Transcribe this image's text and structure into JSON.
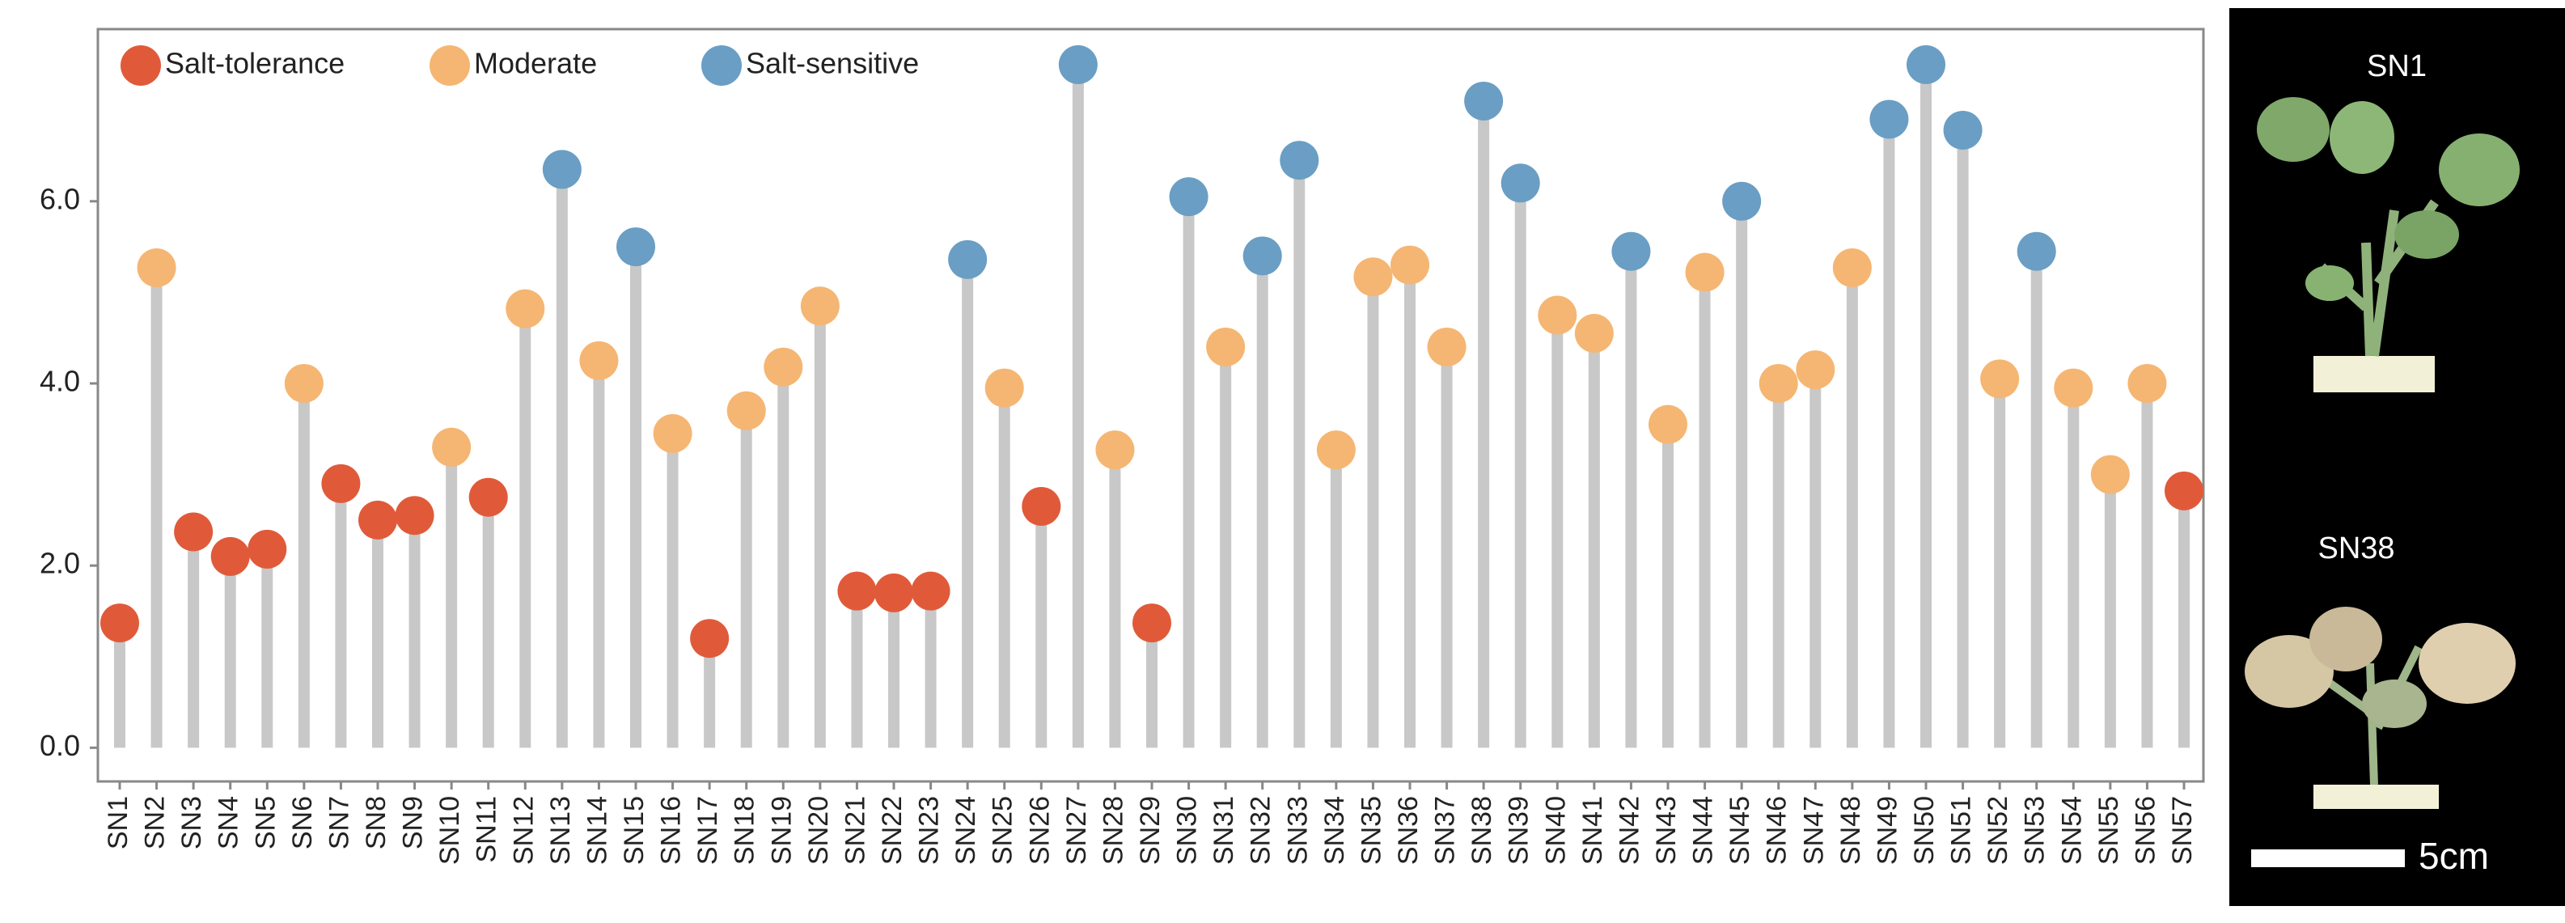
{
  "chart_data": {
    "type": "lollipop",
    "categories": [
      "SN1",
      "SN2",
      "SN3",
      "SN4",
      "SN5",
      "SN6",
      "SN7",
      "SN8",
      "SN9",
      "SN10",
      "SN11",
      "SN12",
      "SN13",
      "SN14",
      "SN15",
      "SN16",
      "SN17",
      "SN18",
      "SN19",
      "SN20",
      "SN21",
      "SN22",
      "SN23",
      "SN24",
      "SN25",
      "SN26",
      "SN27",
      "SN28",
      "SN29",
      "SN30",
      "SN31",
      "SN32",
      "SN33",
      "SN34",
      "SN35",
      "SN36",
      "SN37",
      "SN38",
      "SN39",
      "SN40",
      "SN41",
      "SN42",
      "SN43",
      "SN44",
      "SN45",
      "SN46",
      "SN47",
      "SN48",
      "SN49",
      "SN50",
      "SN51",
      "SN52",
      "SN53",
      "SN54",
      "SN55",
      "SN56",
      "SN57"
    ],
    "series": [
      {
        "name": "Salt-tolerance",
        "color": "#e05a3a",
        "values": [
          1.37,
          null,
          2.37,
          2.1,
          2.18,
          null,
          2.9,
          2.5,
          2.55,
          null,
          2.75,
          null,
          null,
          null,
          null,
          null,
          1.2,
          null,
          null,
          null,
          1.72,
          1.7,
          1.72,
          null,
          null,
          2.65,
          null,
          null,
          1.37,
          null,
          null,
          null,
          null,
          null,
          null,
          null,
          null,
          null,
          null,
          null,
          null,
          null,
          null,
          null,
          null,
          null,
          null,
          null,
          null,
          null,
          null,
          null,
          null,
          null,
          null,
          null,
          2.82
        ]
      },
      {
        "name": "Moderate",
        "color": "#f5b673",
        "values": [
          null,
          5.27,
          null,
          null,
          null,
          4.0,
          null,
          null,
          null,
          3.3,
          null,
          4.82,
          null,
          4.25,
          null,
          3.45,
          null,
          3.7,
          4.18,
          4.85,
          null,
          null,
          null,
          null,
          3.95,
          null,
          null,
          3.27,
          null,
          null,
          4.4,
          null,
          null,
          3.27,
          5.17,
          5.3,
          4.4,
          null,
          null,
          4.75,
          4.55,
          null,
          3.55,
          5.22,
          null,
          4.0,
          4.15,
          5.27,
          null,
          null,
          null,
          4.05,
          null,
          3.95,
          3.0,
          4.0,
          null
        ]
      },
      {
        "name": "Salt-sensitive",
        "color": "#6a9ec4",
        "values": [
          null,
          null,
          null,
          null,
          null,
          null,
          null,
          null,
          null,
          null,
          null,
          null,
          6.35,
          null,
          5.5,
          null,
          null,
          null,
          null,
          null,
          null,
          null,
          null,
          5.36,
          null,
          null,
          7.5,
          null,
          null,
          6.05,
          null,
          5.4,
          6.45,
          null,
          null,
          null,
          null,
          7.1,
          6.2,
          null,
          null,
          5.45,
          null,
          null,
          6.0,
          null,
          null,
          null,
          6.9,
          7.5,
          6.78,
          null,
          5.45,
          null,
          null,
          null,
          null
        ]
      }
    ],
    "stem_color": "#c8c8c8",
    "ylim": [
      -0.37,
      7.89
    ],
    "yticks": [
      {
        "value": 0,
        "label": "0.0"
      },
      {
        "value": 2,
        "label": "2.0"
      },
      {
        "value": 4,
        "label": "4.0"
      },
      {
        "value": 6,
        "label": "6.0"
      }
    ],
    "grid": false,
    "legend": "top-left"
  },
  "photo_panel": {
    "labels": [
      "SN1",
      "SN38"
    ],
    "scale_label": "5cm"
  }
}
